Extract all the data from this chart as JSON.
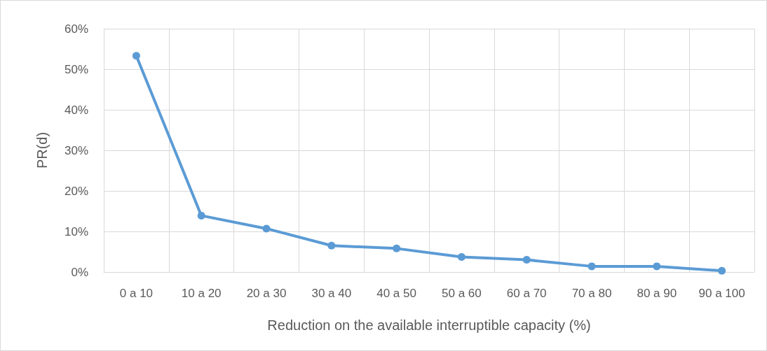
{
  "chart_data": {
    "type": "line",
    "xlabel": "Reduction on the available interruptible capacity (%)",
    "ylabel": "PR(d)",
    "categories": [
      "0 a 10",
      "10 a 20",
      "20 a 30",
      "30 a 40",
      "40 a 50",
      "50 a 60",
      "60 a 70",
      "70 a 80",
      "80 a 90",
      "90 a 100"
    ],
    "series": [
      {
        "color": "#5b9bd5",
        "values": [
          53.3,
          13.9,
          10.7,
          6.5,
          5.8,
          3.7,
          3.0,
          1.4,
          1.4,
          0.3
        ]
      }
    ],
    "ylim": [
      0,
      60
    ],
    "yticks": [
      {
        "value": 0,
        "label": "0%"
      },
      {
        "value": 10,
        "label": "10%"
      },
      {
        "value": 20,
        "label": "20%"
      },
      {
        "value": 30,
        "label": "30%"
      },
      {
        "value": 40,
        "label": "40%"
      },
      {
        "value": 50,
        "label": "50%"
      },
      {
        "value": 60,
        "label": "60%"
      }
    ],
    "grid": true,
    "marker": "circle",
    "line_style": "solid"
  }
}
